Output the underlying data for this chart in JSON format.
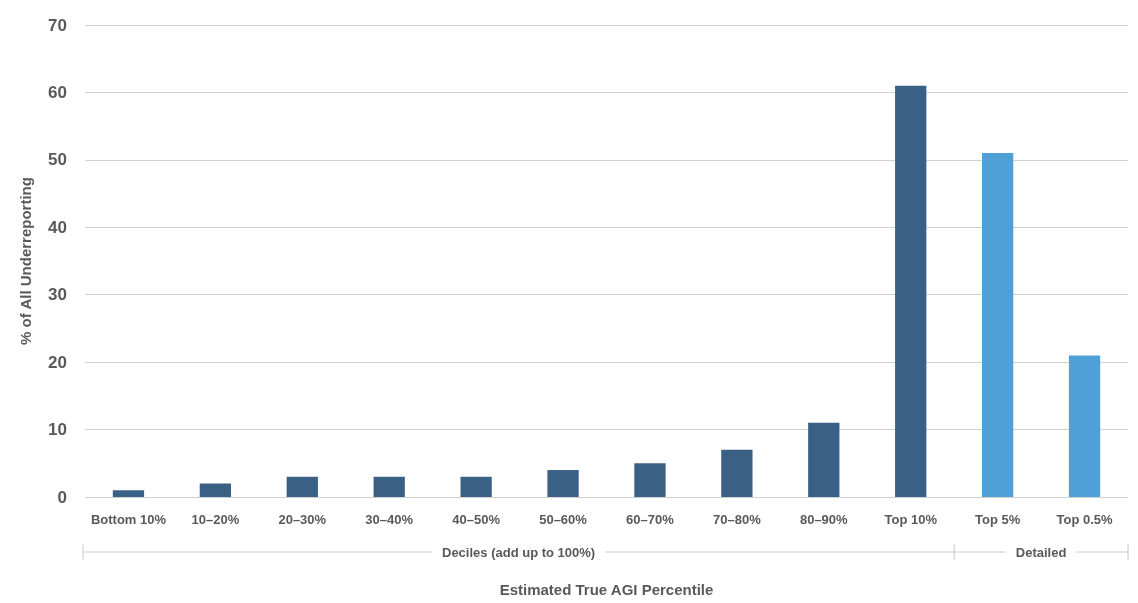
{
  "chart_data": {
    "type": "bar",
    "xlabel": "Estimated True AGI Percentile",
    "ylabel": "% of All Underreporting",
    "categories": [
      "Bottom 10%",
      "10–20%",
      "20–30%",
      "30–40%",
      "40–50%",
      "50–60%",
      "60–70%",
      "70–80%",
      "80–90%",
      "Top 10%",
      "Top 5%",
      "Top 0.5%"
    ],
    "values": [
      1,
      2,
      3,
      3,
      3,
      4,
      5,
      7,
      11,
      61,
      51,
      21
    ],
    "colors": [
      "#3b6086",
      "#3b6086",
      "#3b6086",
      "#3b6086",
      "#3b6086",
      "#3b6086",
      "#3b6086",
      "#3b6086",
      "#3b6086",
      "#3b6086",
      "#4fa0d7",
      "#4fa0d7"
    ],
    "ylim": [
      0,
      70
    ],
    "yticks": [
      0,
      10,
      20,
      30,
      40,
      50,
      60,
      70
    ],
    "grid": "y",
    "annotations": [
      "Deciles (add up to 100%)",
      "Detailed"
    ]
  }
}
